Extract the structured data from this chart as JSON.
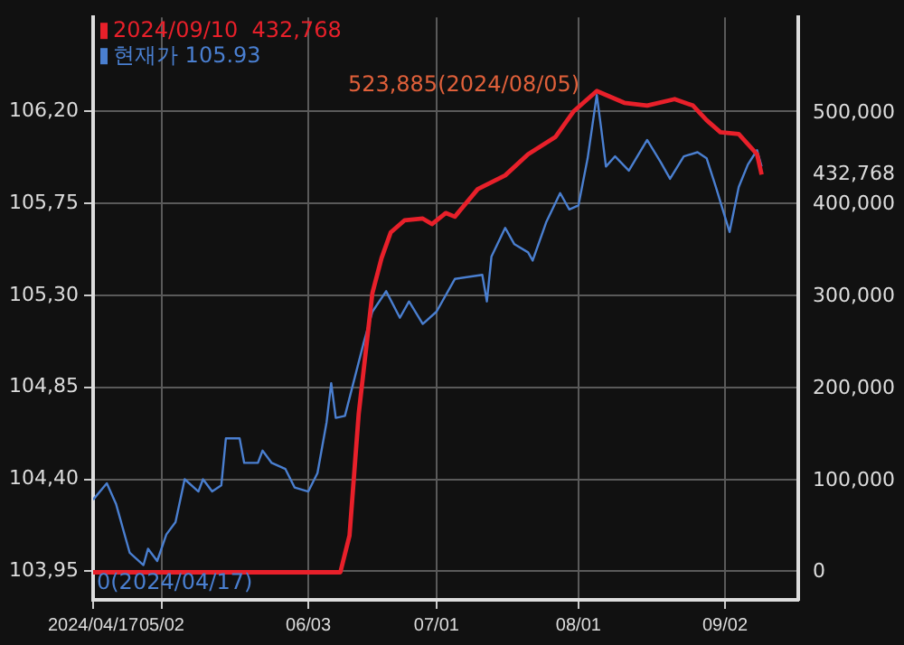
{
  "chart_data": {
    "type": "line",
    "xlim": [
      "2024-04-17",
      "2024-09-18"
    ],
    "xticks": [
      {
        "value": "2024-04-17",
        "label": "2024/04/17"
      },
      {
        "value": "2024-05-02",
        "label": "05/02"
      },
      {
        "value": "2024-06-03",
        "label": "06/03"
      },
      {
        "value": "2024-07-01",
        "label": "07/01"
      },
      {
        "value": "2024-08-01",
        "label": "08/01"
      },
      {
        "value": "2024-09-02",
        "label": "09/02"
      }
    ],
    "ylim": [
      103.81,
      106.66
    ],
    "yticks": [
      {
        "value": 103.95,
        "label": "103,95"
      },
      {
        "value": 104.4,
        "label": "104,40"
      },
      {
        "value": 104.85,
        "label": "104,85"
      },
      {
        "value": 105.3,
        "label": "105,30"
      },
      {
        "value": 105.75,
        "label": "105,75"
      },
      {
        "value": 106.2,
        "label": "106,20"
      }
    ],
    "y2lim": [
      -30000,
      604000
    ],
    "y2ticks": [
      {
        "value": 0,
        "label": "0"
      },
      {
        "value": 100000,
        "label": "100,000"
      },
      {
        "value": 200000,
        "label": "200,000"
      },
      {
        "value": 300000,
        "label": "300,000"
      },
      {
        "value": 400000,
        "label": "400,000"
      },
      {
        "value": 432768,
        "label": "432,768"
      },
      {
        "value": 500000,
        "label": "500,000"
      }
    ],
    "grid": true,
    "legend": "top left",
    "annotations": [
      "523,885(2024/08/05)",
      "0(2024/04/17)"
    ],
    "series": [
      {
        "name": "2024/09/10  432,768",
        "color": "#e8202a",
        "axis": "y2",
        "x": [
          "2024-04-17",
          "2024-06-10",
          "2024-06-12",
          "2024-06-14",
          "2024-06-17",
          "2024-06-19",
          "2024-06-21",
          "2024-06-24",
          "2024-06-28",
          "2024-06-30",
          "2024-07-03",
          "2024-07-05",
          "2024-07-10",
          "2024-07-16",
          "2024-07-21",
          "2024-07-27",
          "2024-07-31",
          "2024-08-05",
          "2024-08-11",
          "2024-08-16",
          "2024-08-22",
          "2024-08-26",
          "2024-08-29",
          "2024-09-01",
          "2024-09-05",
          "2024-09-09",
          "2024-09-10"
        ],
        "values": [
          0,
          0,
          40000,
          172000,
          304000,
          342000,
          370000,
          383000,
          385000,
          379000,
          391000,
          387000,
          417000,
          432000,
          455000,
          474000,
          502000,
          523885,
          511000,
          508000,
          515000,
          508000,
          492000,
          479000,
          477000,
          455000,
          432768
        ]
      },
      {
        "name": "현재가 105.93",
        "color": "#4a7fd0",
        "axis": "y",
        "x": [
          "2024-04-17",
          "2024-04-20",
          "2024-04-22",
          "2024-04-25",
          "2024-04-28",
          "2024-04-29",
          "2024-05-01",
          "2024-05-03",
          "2024-05-05",
          "2024-05-07",
          "2024-05-10",
          "2024-05-11",
          "2024-05-13",
          "2024-05-15",
          "2024-05-16",
          "2024-05-19",
          "2024-05-20",
          "2024-05-23",
          "2024-05-24",
          "2024-05-26",
          "2024-05-29",
          "2024-05-31",
          "2024-06-03",
          "2024-06-05",
          "2024-06-07",
          "2024-06-08",
          "2024-06-09",
          "2024-06-11",
          "2024-06-15",
          "2024-06-17",
          "2024-06-20",
          "2024-06-23",
          "2024-06-25",
          "2024-06-28",
          "2024-07-01",
          "2024-07-05",
          "2024-07-11",
          "2024-07-12",
          "2024-07-13",
          "2024-07-16",
          "2024-07-18",
          "2024-07-21",
          "2024-07-22",
          "2024-07-25",
          "2024-07-28",
          "2024-07-30",
          "2024-08-01",
          "2024-08-03",
          "2024-08-05",
          "2024-08-06",
          "2024-08-07",
          "2024-08-09",
          "2024-08-12",
          "2024-08-16",
          "2024-08-19",
          "2024-08-21",
          "2024-08-24",
          "2024-08-27",
          "2024-08-29",
          "2024-08-31",
          "2024-09-03",
          "2024-09-05",
          "2024-09-07",
          "2024-09-09",
          "2024-09-10"
        ],
        "values": [
          104.3,
          104.38,
          104.28,
          104.04,
          103.98,
          104.06,
          104.0,
          104.13,
          104.19,
          104.4,
          104.34,
          104.4,
          104.34,
          104.37,
          104.6,
          104.6,
          104.48,
          104.48,
          104.54,
          104.48,
          104.45,
          104.36,
          104.34,
          104.43,
          104.68,
          104.87,
          104.7,
          104.71,
          105.06,
          105.22,
          105.32,
          105.19,
          105.27,
          105.16,
          105.22,
          105.38,
          105.4,
          105.27,
          105.49,
          105.63,
          105.55,
          105.51,
          105.47,
          105.66,
          105.8,
          105.72,
          105.74,
          105.97,
          106.28,
          106.11,
          105.93,
          105.98,
          105.91,
          106.06,
          105.95,
          105.87,
          105.98,
          106.0,
          105.97,
          105.83,
          105.61,
          105.83,
          105.94,
          106.01,
          105.93
        ]
      }
    ]
  }
}
